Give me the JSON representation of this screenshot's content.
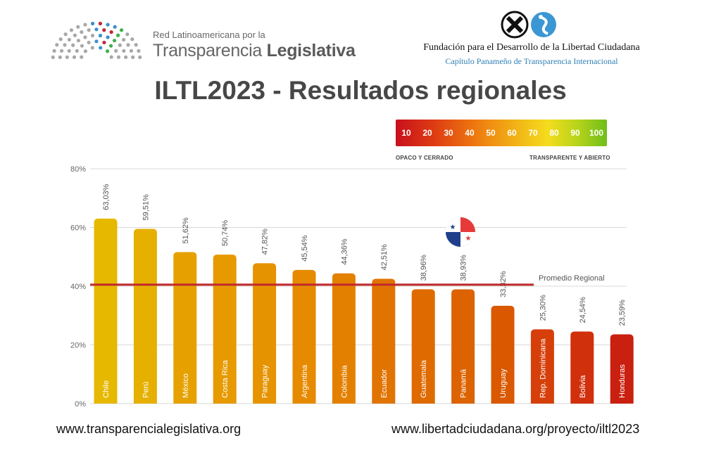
{
  "header": {
    "red_line1": "Red Latinoamericana por la",
    "red_line2_a": "Transparencia ",
    "red_line2_b": "Legislativa",
    "fundacion_name": "Fundación para el Desarrollo de la Libertad Ciudadana",
    "fundacion_sub": "Capítulo Panameño de Transparencia Internacional"
  },
  "title": "ILTL2023 - Resultados regionales",
  "scale": {
    "numbers": [
      "10",
      "20",
      "30",
      "40",
      "50",
      "60",
      "70",
      "80",
      "90",
      "100"
    ],
    "left_caption": "OPACO Y CERRADO",
    "right_caption": "TRANSPARENTE Y  ABIERTO"
  },
  "chart_data": {
    "type": "bar",
    "categories": [
      "Chile",
      "Perú",
      "México",
      "Costa Rica",
      "Paraguay",
      "Argentina",
      "Colombia",
      "Ecuador",
      "Guatemala",
      "Panamá",
      "Uruguay",
      "Rep. Dominicana",
      "Bolivia",
      "Honduras"
    ],
    "values": [
      63.03,
      59.51,
      51.62,
      50.74,
      47.82,
      45.54,
      44.36,
      42.51,
      38.96,
      38.93,
      33.32,
      25.3,
      24.54,
      23.59
    ],
    "value_labels": [
      "63,03%",
      "59,51%",
      "51,62%",
      "50,74%",
      "47,82%",
      "45,54%",
      "44,36%",
      "42,51%",
      "38,96%",
      "38,93%",
      "33,32%",
      "25,30%",
      "24,54%",
      "23,59%"
    ],
    "bar_colors": [
      "#e6b800",
      "#e6b000",
      "#e6a100",
      "#e69a00",
      "#e69300",
      "#e68a00",
      "#e48000",
      "#e17300",
      "#de6a00",
      "#dc6300",
      "#d95800",
      "#d63f0a",
      "#d0300c",
      "#c92010"
    ],
    "y_ticks": [
      0,
      20,
      40,
      60,
      80
    ],
    "y_tick_labels": [
      "0%",
      "20%",
      "40%",
      "60%",
      "80%"
    ],
    "ylim": [
      0,
      80
    ],
    "average": {
      "value": 40.5,
      "label": "Promedio Regional",
      "color": "#c0282d"
    },
    "grid": true
  },
  "footer": {
    "left_url": "www.transparencialegislativa.org",
    "right_url": "www.libertadciudadana.org/proyecto/iltl2023"
  }
}
